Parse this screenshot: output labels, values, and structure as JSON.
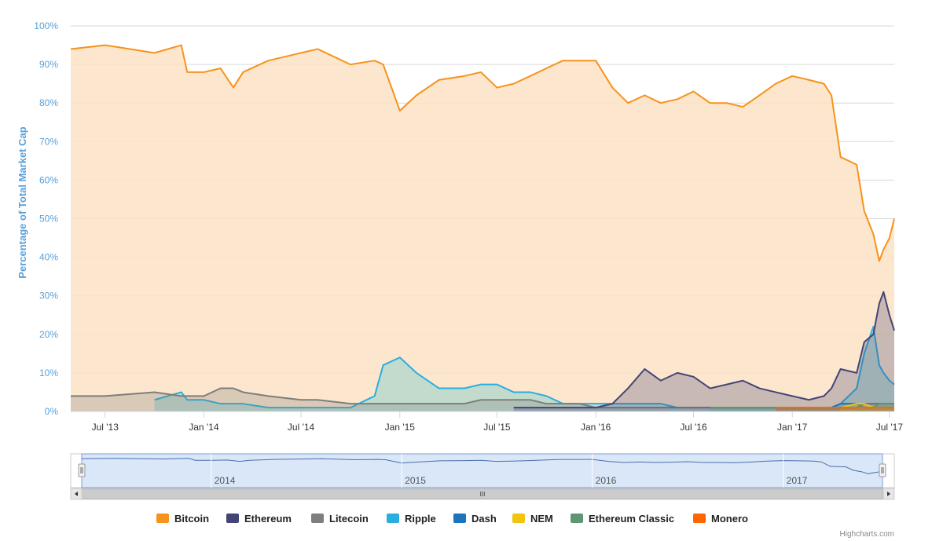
{
  "chart_data": {
    "type": "area",
    "ylabel": "Percentage of Total Market Cap",
    "ylim": [
      0,
      100
    ],
    "yticks": [
      "0%",
      "10%",
      "20%",
      "30%",
      "40%",
      "50%",
      "60%",
      "70%",
      "80%",
      "90%",
      "100%"
    ],
    "xticks": [
      "Jul '13",
      "Jan '14",
      "Jul '14",
      "Jan '15",
      "Jul '15",
      "Jan '16",
      "Jul '16",
      "Jan '17",
      "Jul '17"
    ],
    "navigator_ticks": [
      "2014",
      "2015",
      "2016",
      "2017"
    ],
    "navigator_scroll_label": "III",
    "legend_position": "bottom",
    "grid": true,
    "credit": "Highcharts.com",
    "x_dates": [
      "2013-04-28",
      "2013-07-01",
      "2013-10-01",
      "2013-11-20",
      "2013-12-01",
      "2014-01-01",
      "2014-02-01",
      "2014-02-25",
      "2014-03-15",
      "2014-05-01",
      "2014-07-01",
      "2014-08-01",
      "2014-10-01",
      "2014-11-15",
      "2014-12-01",
      "2015-01-01",
      "2015-02-01",
      "2015-03-15",
      "2015-05-01",
      "2015-06-01",
      "2015-07-01",
      "2015-08-01",
      "2015-09-01",
      "2015-10-01",
      "2015-11-01",
      "2015-12-01",
      "2016-01-01",
      "2016-02-01",
      "2016-03-01",
      "2016-04-01",
      "2016-05-01",
      "2016-06-01",
      "2016-07-01",
      "2016-08-01",
      "2016-09-01",
      "2016-10-01",
      "2016-11-01",
      "2016-12-01",
      "2017-01-01",
      "2017-02-01",
      "2017-03-01",
      "2017-03-15",
      "2017-04-01",
      "2017-05-01",
      "2017-05-15",
      "2017-06-01",
      "2017-06-12",
      "2017-06-20",
      "2017-07-01",
      "2017-07-10"
    ],
    "series": [
      {
        "name": "Bitcoin",
        "color": "#f7931a",
        "fill": "#fde2c5",
        "values": [
          94,
          95,
          93,
          95,
          88,
          88,
          89,
          84,
          88,
          91,
          93,
          94,
          90,
          91,
          90,
          78,
          82,
          86,
          87,
          88,
          84,
          85,
          87,
          89,
          91,
          91,
          91,
          84,
          80,
          82,
          80,
          81,
          83,
          80,
          80,
          79,
          82,
          85,
          87,
          86,
          85,
          82,
          66,
          64,
          52,
          46,
          39,
          42,
          45,
          50
        ]
      },
      {
        "name": "Ethereum",
        "color": "#434576",
        "fill": "none",
        "values": [
          0,
          0,
          0,
          0,
          0,
          0,
          0,
          0,
          0,
          0,
          0,
          0,
          0,
          0,
          0,
          0,
          0,
          0,
          0,
          0,
          0,
          1,
          1,
          1,
          1,
          1,
          1,
          2,
          6,
          11,
          8,
          10,
          9,
          6,
          7,
          8,
          6,
          5,
          4,
          3,
          4,
          6,
          11,
          10,
          18,
          20,
          28,
          31,
          25,
          21
        ]
      },
      {
        "name": "Litecoin",
        "color": "#7e7e7e",
        "fill": "none",
        "values": [
          4,
          4,
          5,
          4,
          4,
          4,
          6,
          6,
          5,
          4,
          3,
          3,
          2,
          2,
          2,
          2,
          2,
          2,
          2,
          3,
          3,
          3,
          3,
          2,
          2,
          2,
          1,
          1,
          1,
          1,
          1,
          1,
          1,
          1,
          1,
          1,
          1,
          1,
          1,
          1,
          1,
          1,
          1,
          1,
          2,
          2,
          2,
          2,
          2,
          2
        ]
      },
      {
        "name": "Ripple",
        "color": "#29aee0",
        "fill": "#b9d8cc",
        "values": [
          0,
          0,
          3,
          5,
          3,
          3,
          2,
          2,
          2,
          1,
          1,
          1,
          1,
          4,
          12,
          14,
          10,
          6,
          6,
          7,
          7,
          5,
          5,
          4,
          2,
          2,
          2,
          2,
          2,
          2,
          2,
          1,
          1,
          1,
          1,
          1,
          1,
          1,
          1,
          1,
          1,
          1,
          2,
          6,
          15,
          22,
          12,
          10,
          8,
          7
        ]
      },
      {
        "name": "Dash",
        "color": "#1c75bc",
        "fill": "none",
        "values": [
          0,
          0,
          0,
          0,
          0,
          0,
          0,
          0,
          0,
          0,
          0,
          0,
          0,
          0,
          0,
          0,
          0,
          0,
          0,
          0,
          0,
          0,
          0,
          0,
          0,
          0,
          0,
          0,
          0,
          0,
          0,
          0,
          0,
          0,
          0,
          0,
          0,
          1,
          1,
          1,
          1,
          1,
          2,
          2,
          1,
          1,
          1,
          1,
          1,
          1
        ]
      },
      {
        "name": "NEM",
        "color": "#f1c40f",
        "fill": "none",
        "values": [
          0,
          0,
          0,
          0,
          0,
          0,
          0,
          0,
          0,
          0,
          0,
          0,
          0,
          0,
          0,
          0,
          0,
          0,
          0,
          0,
          0,
          0,
          0,
          0,
          0,
          0,
          0,
          0,
          0,
          0,
          0,
          0,
          0,
          0,
          0,
          0,
          0,
          0,
          0,
          0,
          0,
          0,
          1,
          2,
          2,
          1,
          1,
          1,
          1,
          1
        ]
      },
      {
        "name": "Ethereum Classic",
        "color": "#5e9672",
        "fill": "none",
        "values": [
          0,
          0,
          0,
          0,
          0,
          0,
          0,
          0,
          0,
          0,
          0,
          0,
          0,
          0,
          0,
          0,
          0,
          0,
          0,
          0,
          0,
          0,
          0,
          0,
          0,
          0,
          0,
          0,
          0,
          0,
          0,
          0,
          0,
          1,
          1,
          1,
          1,
          1,
          1,
          1,
          1,
          1,
          1,
          1,
          1,
          1,
          2,
          2,
          2,
          2
        ]
      },
      {
        "name": "Monero",
        "color": "#ff6600",
        "fill": "none",
        "values": [
          0,
          0,
          0,
          0,
          0,
          0,
          0,
          0,
          0,
          0,
          0,
          0,
          0,
          0,
          0,
          0,
          0,
          0,
          0,
          0,
          0,
          0,
          0,
          0,
          0,
          0,
          0,
          0,
          0,
          0,
          0,
          0,
          0,
          0,
          0,
          0,
          0,
          1,
          1,
          1,
          1,
          1,
          1,
          1,
          1,
          1,
          1,
          1,
          1,
          1
        ]
      }
    ]
  }
}
